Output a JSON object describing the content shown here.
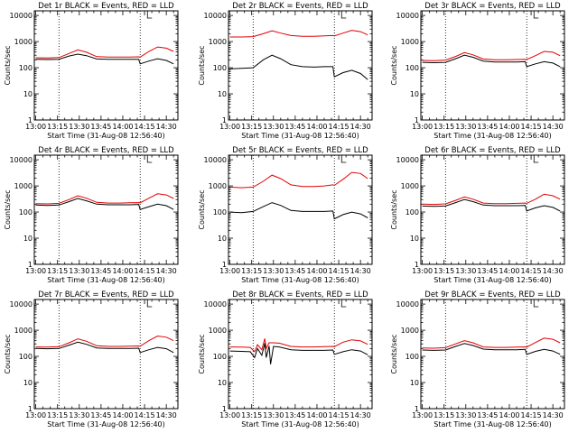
{
  "figure_title": "",
  "colors": {
    "events": "#000000",
    "lld": "#e00000",
    "background": "#ffffff",
    "axis": "#000000"
  },
  "chart_data": [
    {
      "type": "line",
      "title": "Det 1r BLACK = Events, RED = LLD",
      "xlabel": "Start Time (31-Aug-08 12:56:40)",
      "ylabel": "Counts/sec",
      "xlim": [
        "12:59",
        "14:38"
      ],
      "ylim": [
        1,
        15000
      ],
      "yscale": "log",
      "xticks": [
        "13:00",
        "13:15",
        "13:30",
        "13:45",
        "14:00",
        "14:15",
        "14:30"
      ],
      "yticks": [
        "1",
        "10",
        "100",
        "1000",
        "10000"
      ],
      "vlines": [
        "13:16",
        "14:12"
      ],
      "x": [
        "13:00",
        "13:08",
        "13:16",
        "13:23",
        "13:29",
        "13:35",
        "13:42",
        "13:50",
        "13:58",
        "14:05",
        "14:11",
        "14:12",
        "14:18",
        "14:24",
        "14:30",
        "14:35"
      ],
      "series": [
        {
          "name": "Events",
          "values": [
            210,
            205,
            210,
            280,
            330,
            290,
            215,
            210,
            210,
            210,
            210,
            140,
            180,
            220,
            190,
            140
          ]
        },
        {
          "name": "LLD",
          "values": [
            240,
            235,
            245,
            350,
            480,
            390,
            265,
            255,
            255,
            255,
            260,
            255,
            420,
            620,
            560,
            420
          ]
        }
      ]
    },
    {
      "type": "line",
      "title": "Det 2r BLACK = Events, RED = LLD",
      "xlabel": "Start Time (31-Aug-08 12:56:40)",
      "ylabel": "Counts/sec",
      "xlim": [
        "12:59",
        "14:38"
      ],
      "ylim": [
        1,
        15000
      ],
      "yscale": "log",
      "xticks": [
        "13:00",
        "13:15",
        "13:30",
        "13:45",
        "14:00",
        "14:15",
        "14:30"
      ],
      "yticks": [
        "1",
        "10",
        "100",
        "1000",
        "10000"
      ],
      "vlines": [
        "13:16",
        "14:12"
      ],
      "x": [
        "13:00",
        "13:08",
        "13:16",
        "13:23",
        "13:29",
        "13:35",
        "13:42",
        "13:50",
        "13:58",
        "14:05",
        "14:11",
        "14:12",
        "14:18",
        "14:24",
        "14:30",
        "14:35"
      ],
      "series": [
        {
          "name": "Events",
          "values": [
            90,
            95,
            100,
            200,
            300,
            220,
            130,
            110,
            105,
            110,
            110,
            45,
            65,
            80,
            60,
            35
          ]
        },
        {
          "name": "LLD",
          "values": [
            1500,
            1500,
            1550,
            2000,
            2600,
            2100,
            1700,
            1600,
            1600,
            1650,
            1700,
            1650,
            2100,
            2700,
            2400,
            1800
          ]
        }
      ]
    },
    {
      "type": "line",
      "title": "Det 3r BLACK = Events, RED = LLD",
      "xlabel": "Start Time (31-Aug-08 12:56:40)",
      "ylabel": "Counts/sec",
      "xlim": [
        "12:59",
        "14:38"
      ],
      "ylim": [
        1,
        15000
      ],
      "yscale": "log",
      "xticks": [
        "13:00",
        "13:15",
        "13:30",
        "13:45",
        "14:00",
        "14:15",
        "14:30"
      ],
      "yticks": [
        "1",
        "10",
        "100",
        "1000",
        "10000"
      ],
      "vlines": [
        "13:16",
        "14:12"
      ],
      "x": [
        "13:00",
        "13:08",
        "13:16",
        "13:23",
        "13:29",
        "13:35",
        "13:42",
        "13:50",
        "13:58",
        "14:05",
        "14:11",
        "14:12",
        "14:18",
        "14:24",
        "14:30",
        "14:35"
      ],
      "series": [
        {
          "name": "Events",
          "values": [
            160,
            155,
            160,
            220,
            300,
            250,
            180,
            165,
            165,
            165,
            170,
            110,
            140,
            170,
            150,
            110
          ]
        },
        {
          "name": "LLD",
          "values": [
            190,
            185,
            195,
            270,
            380,
            310,
            215,
            200,
            200,
            205,
            210,
            205,
            290,
            420,
            390,
            290
          ]
        }
      ]
    },
    {
      "type": "line",
      "title": "Det 4r BLACK = Events, RED = LLD",
      "xlabel": "Start Time (31-Aug-08 12:56:40)",
      "ylabel": "Counts/sec",
      "xlim": [
        "12:59",
        "14:38"
      ],
      "ylim": [
        1,
        15000
      ],
      "yscale": "log",
      "xticks": [
        "13:00",
        "13:15",
        "13:30",
        "13:45",
        "14:00",
        "14:15",
        "14:30"
      ],
      "yticks": [
        "1",
        "10",
        "100",
        "1000",
        "10000"
      ],
      "vlines": [
        "13:16",
        "14:12"
      ],
      "x": [
        "13:00",
        "13:08",
        "13:16",
        "13:23",
        "13:29",
        "13:35",
        "13:42",
        "13:50",
        "13:58",
        "14:05",
        "14:11",
        "14:12",
        "14:18",
        "14:24",
        "14:30",
        "14:35"
      ],
      "series": [
        {
          "name": "Events",
          "values": [
            185,
            180,
            185,
            250,
            330,
            270,
            200,
            190,
            190,
            190,
            195,
            125,
            160,
            200,
            175,
            125
          ]
        },
        {
          "name": "LLD",
          "values": [
            210,
            205,
            215,
            300,
            420,
            340,
            235,
            220,
            220,
            225,
            230,
            225,
            340,
            500,
            450,
            330
          ]
        }
      ]
    },
    {
      "type": "line",
      "title": "Det 5r BLACK = Events, RED = LLD",
      "xlabel": "Start Time (31-Aug-08 12:56:40)",
      "ylabel": "Counts/sec",
      "xlim": [
        "12:59",
        "14:38"
      ],
      "ylim": [
        1,
        15000
      ],
      "yscale": "log",
      "xticks": [
        "13:00",
        "13:15",
        "13:30",
        "13:45",
        "14:00",
        "14:15",
        "14:30"
      ],
      "yticks": [
        "1",
        "10",
        "100",
        "1000",
        "10000"
      ],
      "vlines": [
        "13:16",
        "14:12"
      ],
      "x": [
        "13:00",
        "13:08",
        "13:16",
        "13:23",
        "13:29",
        "13:35",
        "13:42",
        "13:50",
        "13:58",
        "14:05",
        "14:11",
        "14:12",
        "14:18",
        "14:24",
        "14:30",
        "14:35"
      ],
      "series": [
        {
          "name": "Events",
          "values": [
            100,
            95,
            105,
            160,
            230,
            180,
            115,
            105,
            105,
            105,
            110,
            55,
            80,
            100,
            85,
            60
          ]
        },
        {
          "name": "LLD",
          "values": [
            900,
            850,
            900,
            1500,
            2600,
            1900,
            1100,
            950,
            950,
            1000,
            1100,
            1050,
            1800,
            3300,
            3000,
            1900
          ]
        }
      ]
    },
    {
      "type": "line",
      "title": "Det 6r BLACK = Events, RED = LLD",
      "xlabel": "Start Time (31-Aug-08 12:56:40)",
      "ylabel": "Counts/sec",
      "xlim": [
        "12:59",
        "14:38"
      ],
      "ylim": [
        1,
        15000
      ],
      "yscale": "log",
      "xticks": [
        "13:00",
        "13:15",
        "13:30",
        "13:45",
        "14:00",
        "14:15",
        "14:30"
      ],
      "yticks": [
        "1",
        "10",
        "100",
        "1000",
        "10000"
      ],
      "vlines": [
        "13:16",
        "14:12"
      ],
      "x": [
        "13:00",
        "13:08",
        "13:16",
        "13:23",
        "13:29",
        "13:35",
        "13:42",
        "13:50",
        "13:58",
        "14:05",
        "14:11",
        "14:12",
        "14:18",
        "14:24",
        "14:30",
        "14:35"
      ],
      "series": [
        {
          "name": "Events",
          "values": [
            170,
            165,
            170,
            230,
            300,
            250,
            185,
            175,
            175,
            175,
            180,
            110,
            145,
            175,
            150,
            110
          ]
        },
        {
          "name": "LLD",
          "values": [
            200,
            195,
            205,
            280,
            380,
            310,
            220,
            210,
            210,
            215,
            220,
            215,
            310,
            480,
            420,
            310
          ]
        }
      ]
    },
    {
      "type": "line",
      "title": "Det 7r BLACK = Events, RED = LLD",
      "xlabel": "Start Time (31-Aug-08 12:56:40)",
      "ylabel": "Counts/sec",
      "xlim": [
        "12:59",
        "14:38"
      ],
      "ylim": [
        1,
        15000
      ],
      "yscale": "log",
      "xticks": [
        "13:00",
        "13:15",
        "13:30",
        "13:45",
        "14:00",
        "14:15",
        "14:30"
      ],
      "yticks": [
        "1",
        "10",
        "100",
        "1000",
        "10000"
      ],
      "vlines": [
        "13:16",
        "14:12"
      ],
      "x": [
        "13:00",
        "13:08",
        "13:16",
        "13:23",
        "13:29",
        "13:35",
        "13:42",
        "13:50",
        "13:58",
        "14:05",
        "14:11",
        "14:12",
        "14:18",
        "14:24",
        "14:30",
        "14:35"
      ],
      "series": [
        {
          "name": "Events",
          "values": [
            200,
            195,
            200,
            270,
            350,
            290,
            210,
            200,
            200,
            200,
            205,
            140,
            180,
            220,
            195,
            140
          ]
        },
        {
          "name": "LLD",
          "values": [
            230,
            225,
            235,
            330,
            470,
            380,
            255,
            240,
            240,
            245,
            250,
            245,
            400,
            600,
            540,
            400
          ]
        }
      ]
    },
    {
      "type": "line",
      "title": "Det 8r BLACK = Events, RED = LLD",
      "xlabel": "Start Time (31-Aug-08 12:56:40)",
      "ylabel": "Counts/sec",
      "xlim": [
        "12:59",
        "14:38"
      ],
      "ylim": [
        1,
        15000
      ],
      "yscale": "log",
      "xticks": [
        "13:00",
        "13:15",
        "13:30",
        "13:45",
        "14:00",
        "14:15",
        "14:30"
      ],
      "yticks": [
        "1",
        "10",
        "100",
        "1000",
        "10000"
      ],
      "vlines": [
        "13:16",
        "14:12"
      ],
      "x": [
        "13:00",
        "13:08",
        "13:14",
        "13:17",
        "13:19",
        "13:22",
        "13:24",
        "13:25",
        "13:27",
        "13:28",
        "13:30",
        "13:34",
        "13:42",
        "13:50",
        "13:58",
        "14:05",
        "14:11",
        "14:12",
        "14:18",
        "14:24",
        "14:30",
        "14:35"
      ],
      "series": [
        {
          "name": "Events",
          "values": [
            160,
            155,
            150,
            90,
            200,
            110,
            320,
            90,
            250,
            50,
            240,
            230,
            180,
            170,
            170,
            170,
            175,
            120,
            150,
            180,
            160,
            115
          ]
        },
        {
          "name": "LLD",
          "values": [
            230,
            225,
            220,
            150,
            280,
            180,
            480,
            200,
            330,
            330,
            330,
            320,
            240,
            230,
            230,
            235,
            240,
            235,
            350,
            430,
            390,
            290
          ]
        }
      ]
    },
    {
      "type": "line",
      "title": "Det 9r BLACK = Events, RED = LLD",
      "xlabel": "Start Time (31-Aug-08 12:56:40)",
      "ylabel": "Counts/sec",
      "xlim": [
        "12:59",
        "14:38"
      ],
      "ylim": [
        1,
        15000
      ],
      "yscale": "log",
      "xticks": [
        "13:00",
        "13:15",
        "13:30",
        "13:45",
        "14:00",
        "14:15",
        "14:30"
      ],
      "yticks": [
        "1",
        "10",
        "100",
        "1000",
        "10000"
      ],
      "vlines": [
        "13:16",
        "14:12"
      ],
      "x": [
        "13:00",
        "13:08",
        "13:16",
        "13:23",
        "13:29",
        "13:35",
        "13:42",
        "13:50",
        "13:58",
        "14:05",
        "14:11",
        "14:12",
        "14:18",
        "14:24",
        "14:30",
        "14:35"
      ],
      "series": [
        {
          "name": "Events",
          "values": [
            175,
            170,
            175,
            240,
            310,
            260,
            190,
            180,
            180,
            180,
            185,
            120,
            155,
            185,
            160,
            120
          ]
        },
        {
          "name": "LLD",
          "values": [
            210,
            205,
            215,
            300,
            400,
            330,
            230,
            220,
            220,
            225,
            230,
            225,
            340,
            500,
            450,
            330
          ]
        }
      ]
    }
  ]
}
